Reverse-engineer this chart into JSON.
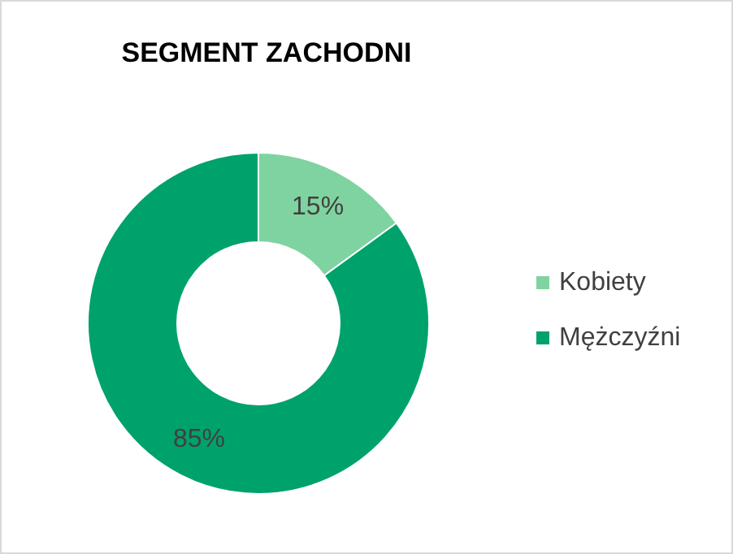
{
  "chart_data": {
    "type": "donut",
    "title": "SEGMENT ZACHODNI",
    "categories": [
      "Kobiety",
      "Mężczyźni"
    ],
    "values": [
      15,
      85
    ],
    "colors": [
      "#7fd3a0",
      "#00a26b"
    ],
    "value_labels": [
      "15%",
      "85%"
    ],
    "legend": "right"
  }
}
